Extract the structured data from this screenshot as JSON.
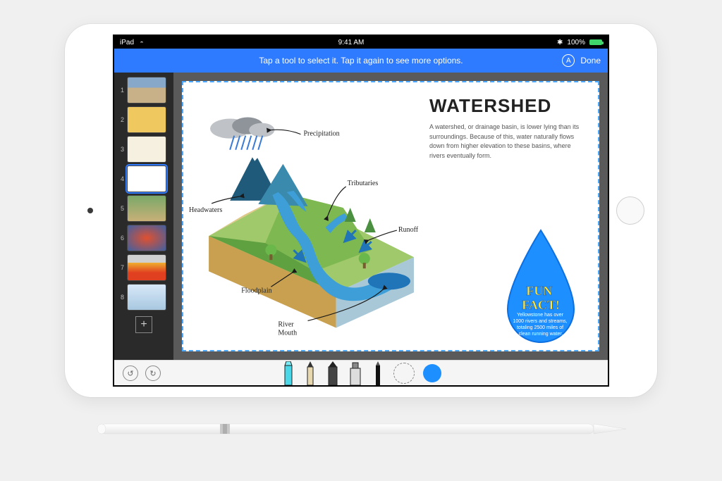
{
  "statusbar": {
    "device": "iPad",
    "time": "9:41 AM",
    "battery_pct": "100%",
    "bluetooth": "᚛"
  },
  "toolbar": {
    "bg_color": "#2f7bff",
    "hint": "Tap a tool to select it. Tap it again to see more options.",
    "badge_label": "A",
    "done_label": "Done"
  },
  "sidebar": {
    "thumbs": [
      {
        "n": "1",
        "cls": "t1"
      },
      {
        "n": "2",
        "cls": "t2"
      },
      {
        "n": "3",
        "cls": "t3"
      },
      {
        "n": "4",
        "cls": "t4",
        "selected": true
      },
      {
        "n": "5",
        "cls": "t5"
      },
      {
        "n": "6",
        "cls": "t6"
      },
      {
        "n": "7",
        "cls": "t7"
      },
      {
        "n": "8",
        "cls": "t8"
      }
    ],
    "add_label": "+"
  },
  "slide": {
    "selection_border_color": "#4aa8ff",
    "title": "WATERSHED",
    "description": "A watershed, or drainage basin, is lower lying than its surroundings. Because of this, water naturally flows down from higher elevation to these basins, where rivers eventually form.",
    "annotations": {
      "precipitation": "Precipitation",
      "tributaries": "Tributaries",
      "headwaters": "Headwaters",
      "runoff": "Runoff",
      "floodplain": "Floodplain",
      "river_mouth": "River Mouth"
    },
    "diagram_colors": {
      "cloud": "#bfc3c7",
      "cloud_dark": "#8e949a",
      "rain": "#3a7bd5",
      "mountain_dark": "#1f5a7a",
      "mountain_light": "#3a8aae",
      "grass_light": "#9fc96a",
      "grass_mid": "#7db850",
      "grass_dark": "#5fa040",
      "river": "#3e9fd8",
      "river_dark": "#2074b8",
      "sand": "#e0c888",
      "soil": "#c8a050",
      "bedrock": "#a8c8d8",
      "tree": "#4a9040",
      "tree_lollipop": "#6ab84a",
      "arrow": "#1a1a1a"
    },
    "funfact": {
      "droplet_fill": "#1d8fff",
      "droplet_stroke": "#0d6fe0",
      "title": "FUN FACT!",
      "body": "Yellowstone has over 1000 rivers and streams, totaling 2500 miles of clean running water."
    }
  },
  "tooltray": {
    "tools": [
      "highlighter",
      "pencil",
      "crayon",
      "marker",
      "pen",
      "lasso",
      "color"
    ],
    "selected_color": "#1d8fff",
    "left_icons": [
      "undo",
      "redo"
    ]
  }
}
